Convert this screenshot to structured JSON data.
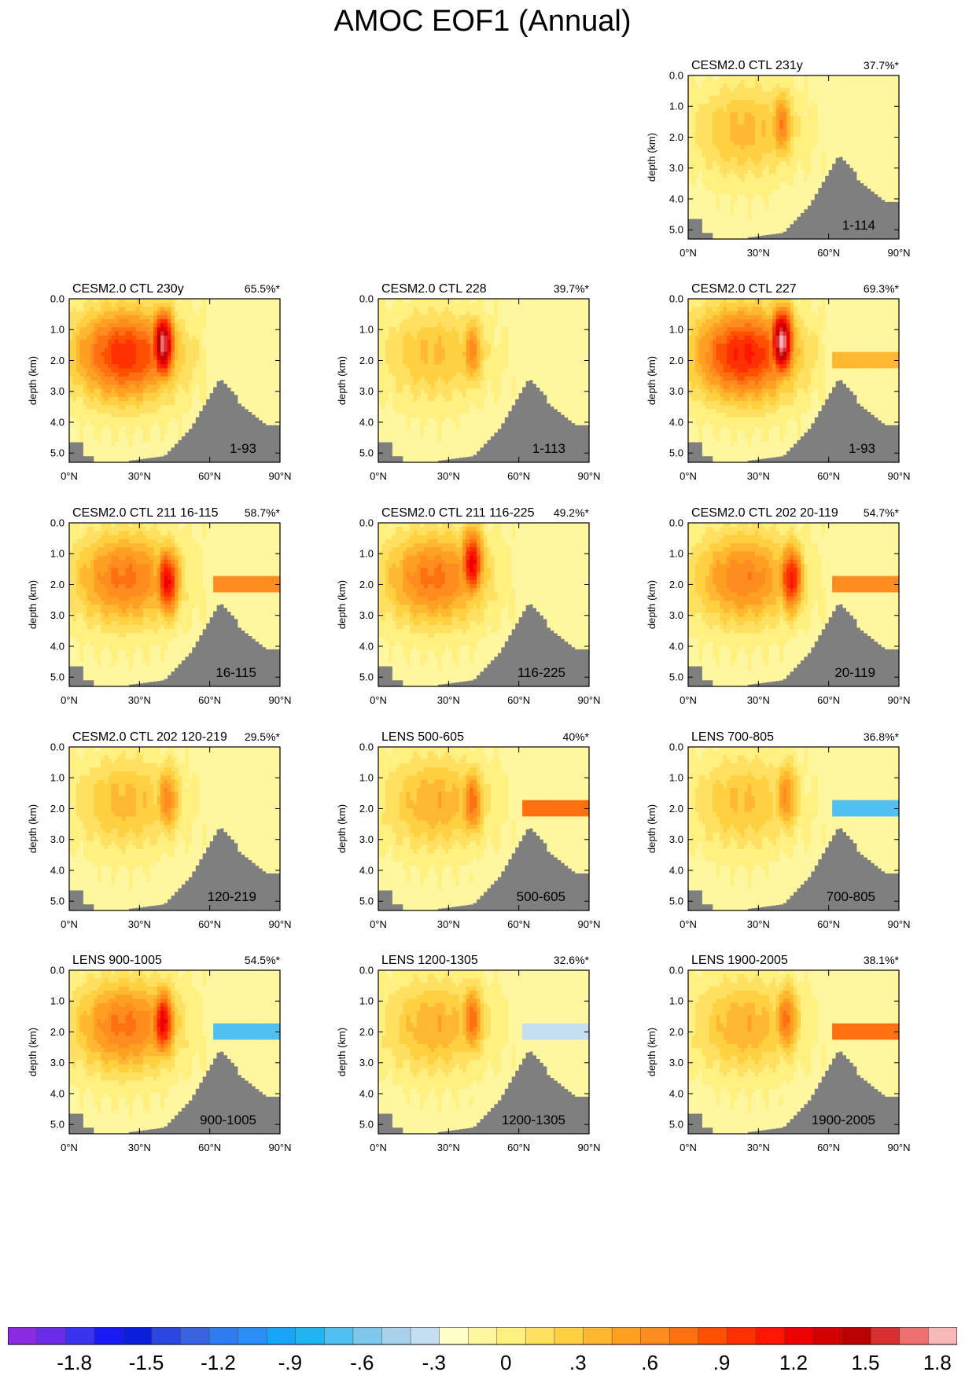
{
  "figure": {
    "title": "AMOC EOF1 (Annual)"
  },
  "palette": {
    "land": "#7f7f7f",
    "colorbar": [
      "#8a2be2",
      "#6a2ce8",
      "#3a33f0",
      "#1a1af5",
      "#0a1edc",
      "#2a48e0",
      "#3864e0",
      "#2e7cee",
      "#2a90f8",
      "#18a4f8",
      "#20b4f0",
      "#50c0f0",
      "#7ec8ee",
      "#a8d2ec",
      "#c4def2",
      "#ffffc8",
      "#fff6a0",
      "#fff080",
      "#ffe060",
      "#ffd040",
      "#ffb830",
      "#ffa020",
      "#ff8c1e",
      "#ff7010",
      "#ff5000",
      "#ff3000",
      "#ff1500",
      "#ee0000",
      "#d40000",
      "#bb0000",
      "#d83030",
      "#ee7070",
      "#f8b8b8"
    ]
  },
  "chart_data": {
    "type": "contour-map-panels",
    "title": "AMOC EOF1 (Annual)",
    "xlabel": "",
    "ylabel": "depth (km)",
    "xlim": [
      0,
      90
    ],
    "ylim": [
      5.3,
      0
    ],
    "x_ticks": [
      "0°N",
      "30°N",
      "60°N",
      "90°N"
    ],
    "y_ticks": [
      "0.0",
      "1.0",
      "2.0",
      "3.0",
      "4.0",
      "5.0"
    ],
    "colorbar": {
      "labels": [
        "-1.8",
        "-1.5",
        "-1.2",
        "-.9",
        "-.6",
        "-.3",
        "0",
        ".3",
        ".6",
        ".9",
        "1.2",
        "1.5",
        "1.8"
      ],
      "levels": [
        -2.1,
        2.1
      ]
    },
    "panels": [
      {
        "title": "CESM2.0 CTL 231y",
        "pct": "37.7%*",
        "range": "1-114",
        "amp": 0.8,
        "core": [
          40,
          1.6
        ],
        "band": null
      },
      {
        "title": "CESM2.0 CTL 230y",
        "pct": "65.5%*",
        "range": "1-93",
        "amp": 1.9,
        "core": [
          40,
          1.5
        ],
        "band": null
      },
      {
        "title": "CESM2.0 CTL 228",
        "pct": "39.7%*",
        "range": "1-113",
        "amp": 0.75,
        "core": [
          40,
          1.7
        ],
        "band": null
      },
      {
        "title": "CESM2.0 CTL 227",
        "pct": "69.3%*",
        "range": "1-93",
        "amp": 2.0,
        "core": [
          40,
          1.4
        ],
        "band": 0.45
      },
      {
        "title": "CESM2.0 CTL 211 16-115",
        "pct": "58.7%*",
        "range": "16-115",
        "amp": 1.4,
        "core": [
          42,
          1.9
        ],
        "band": 0.8
      },
      {
        "title": "CESM2.0 CTL 211 116-225",
        "pct": "49.2%*",
        "range": "116-225",
        "amp": 1.4,
        "core": [
          40,
          1.3
        ],
        "band": null
      },
      {
        "title": "CESM2.0 CTL 202 20-119",
        "pct": "54.7%*",
        "range": "20-119",
        "amp": 1.3,
        "core": [
          44,
          1.8
        ],
        "band": 0.8
      },
      {
        "title": "CESM2.0 CTL 202 120-219",
        "pct": "29.5%*",
        "range": "120-219",
        "amp": 0.8,
        "core": [
          42,
          1.7
        ],
        "band": null
      },
      {
        "title": "LENS 500-605",
        "pct": "40%*",
        "range": "500-605",
        "amp": 0.9,
        "core": [
          40,
          1.8
        ],
        "band": 0.9
      },
      {
        "title": "LENS 700-805",
        "pct": "36.8%*",
        "range": "700-805",
        "amp": 0.75,
        "core": [
          42,
          1.6
        ],
        "band": -0.7
      },
      {
        "title": "LENS 900-1005",
        "pct": "54.5%*",
        "range": "900-1005",
        "amp": 1.4,
        "core": [
          40,
          1.7
        ],
        "band": -0.7
      },
      {
        "title": "LENS 1200-1305",
        "pct": "32.6%*",
        "range": "1200-1305",
        "amp": 0.9,
        "core": [
          40,
          1.6
        ],
        "band": -0.3
      },
      {
        "title": "LENS 1900-2005",
        "pct": "38.1%*",
        "range": "1900-2005",
        "amp": 0.9,
        "core": [
          42,
          1.6
        ],
        "band": 0.9
      }
    ]
  }
}
